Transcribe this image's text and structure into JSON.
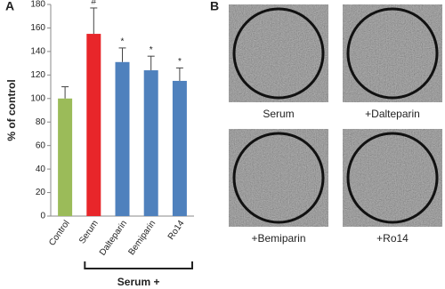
{
  "chart_data": {
    "type": "bar",
    "y_label": "% of control",
    "categories": [
      "Control",
      "Serum",
      "Dalteparin",
      "Bemiparin",
      "Ro14"
    ],
    "values": [
      100,
      155,
      131,
      124,
      115
    ],
    "errors": [
      10,
      22,
      12,
      12,
      11
    ],
    "markers": [
      null,
      "#",
      "*",
      "*",
      "*"
    ],
    "colors": [
      "#9bbb59",
      "#e8262a",
      "#4f81bd",
      "#4f81bd",
      "#4f81bd"
    ],
    "group_label": "Serum +",
    "ylim": [
      0,
      180
    ],
    "yticks": [
      0,
      20,
      40,
      60,
      80,
      100,
      120,
      140,
      160,
      180
    ]
  },
  "panel_labels": [
    "A",
    "B"
  ],
  "images": {
    "captions": [
      "Serum",
      "+Dalteparin",
      "+Bemiparin",
      "+Ro14"
    ]
  }
}
